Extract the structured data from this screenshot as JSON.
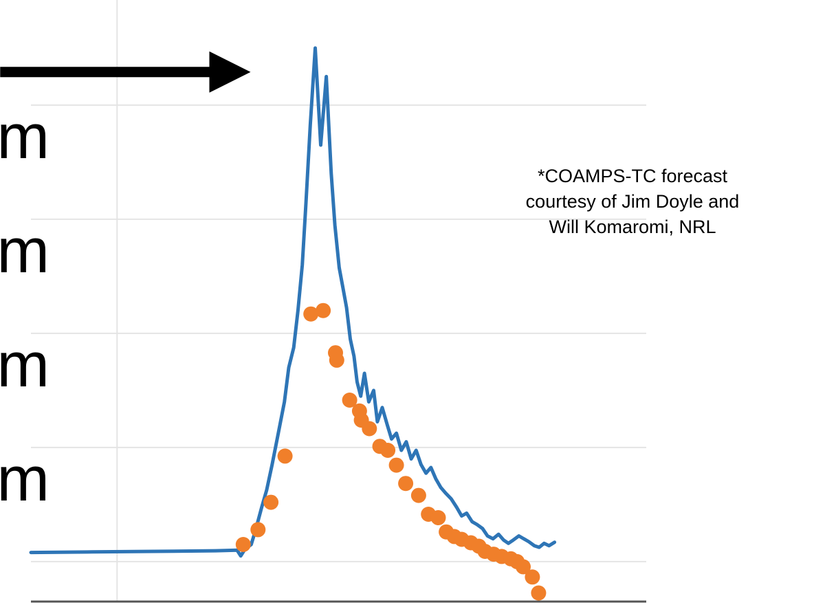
{
  "chart_data": {
    "type": "line",
    "title": "",
    "xlabel": "",
    "ylabel": "",
    "xlim": [
      0,
      100
    ],
    "ylim": [
      0,
      100
    ],
    "y_tick_labels": [
      {
        "y": 81.5,
        "text": "m"
      },
      {
        "y": 61.5,
        "text": "m"
      },
      {
        "y": 41.5,
        "text": "m"
      },
      {
        "y": 21.5,
        "text": "m"
      }
    ],
    "gridlines_y": [
      7,
      27,
      47,
      67,
      87
    ],
    "gridlines_x": [
      14
    ],
    "grid": true,
    "colors": {
      "line": "#2e75b6",
      "dots": "#f07f2a",
      "arrow": "#000000",
      "grid": "#e4e4e4",
      "axis": "#555555"
    },
    "arrow": {
      "from": [
        -5,
        92.8
      ],
      "to": [
        35.7,
        92.8
      ]
    },
    "series": [
      {
        "kind": "line",
        "x": [
          0,
          10,
          20,
          30,
          33.5,
          34.1,
          34.8,
          35.8,
          36.5,
          37.5,
          38.3,
          39.2,
          40.2,
          41.2,
          41.9,
          42.7,
          43.4,
          44.1,
          44.7,
          45.4,
          46.2,
          47.1,
          48.0,
          48.8,
          49.4,
          50.1,
          50.7,
          51.3,
          51.9,
          52.5,
          53.0,
          53.6,
          54.2,
          54.9,
          55.7,
          56.3,
          57.1,
          57.9,
          58.6,
          59.4,
          60.2,
          61.0,
          61.8,
          62.6,
          63.4,
          64.2,
          65.0,
          65.8,
          66.6,
          67.4,
          68.3,
          69.2,
          70.0,
          70.8,
          71.7,
          72.5,
          73.4,
          74.2,
          75.1,
          76.0,
          76.8,
          77.6,
          78.4,
          79.3,
          80.1,
          80.9,
          81.8,
          82.6,
          83.4,
          84.2,
          85.1
        ],
        "y": [
          8.6,
          8.7,
          8.8,
          8.9,
          9.0,
          8.0,
          9.2,
          10.0,
          12.5,
          16.5,
          19.5,
          24.0,
          29.5,
          35.0,
          41.0,
          44.5,
          51.0,
          59.0,
          70.0,
          83.5,
          97.0,
          80.0,
          92.0,
          75.0,
          66.0,
          58.5,
          55.0,
          51.5,
          46.0,
          43.0,
          38.5,
          36.0,
          40.0,
          35.0,
          37.0,
          31.5,
          34.0,
          31.0,
          28.5,
          29.5,
          26.5,
          28.0,
          25.0,
          26.5,
          24.0,
          22.5,
          23.5,
          21.5,
          20.0,
          19.0,
          18.0,
          16.5,
          15.0,
          15.5,
          14.0,
          13.5,
          12.8,
          11.5,
          11.0,
          11.8,
          10.8,
          10.2,
          10.8,
          11.5,
          11.0,
          10.5,
          9.8,
          9.5,
          10.2,
          9.8,
          10.4
        ]
      },
      {
        "kind": "scatter",
        "x": [
          34.5,
          36.9,
          39.0,
          41.3,
          45.5,
          47.5,
          49.5,
          49.7,
          51.8,
          53.4,
          53.7,
          55.0,
          56.7,
          58.0,
          59.4,
          60.9,
          63.0,
          64.6,
          66.2,
          67.5,
          68.8,
          70.0,
          71.5,
          72.8,
          73.8,
          75.2,
          76.5,
          78.0,
          79.0,
          80.0,
          81.5,
          82.5
        ],
        "y": [
          10.0,
          12.6,
          17.4,
          25.5,
          50.4,
          51.0,
          43.6,
          42.3,
          35.3,
          33.4,
          31.8,
          30.3,
          27.2,
          26.5,
          23.9,
          20.7,
          18.6,
          15.3,
          14.7,
          12.2,
          11.4,
          10.9,
          10.3,
          9.7,
          8.8,
          8.3,
          7.9,
          7.5,
          7.0,
          6.1,
          4.3,
          1.5
        ]
      }
    ]
  },
  "annotation": {
    "lines": [
      "*COAMPS-TC forecast",
      "courtesy of Jim Doyle and",
      "Will Komaromi, NRL"
    ]
  }
}
